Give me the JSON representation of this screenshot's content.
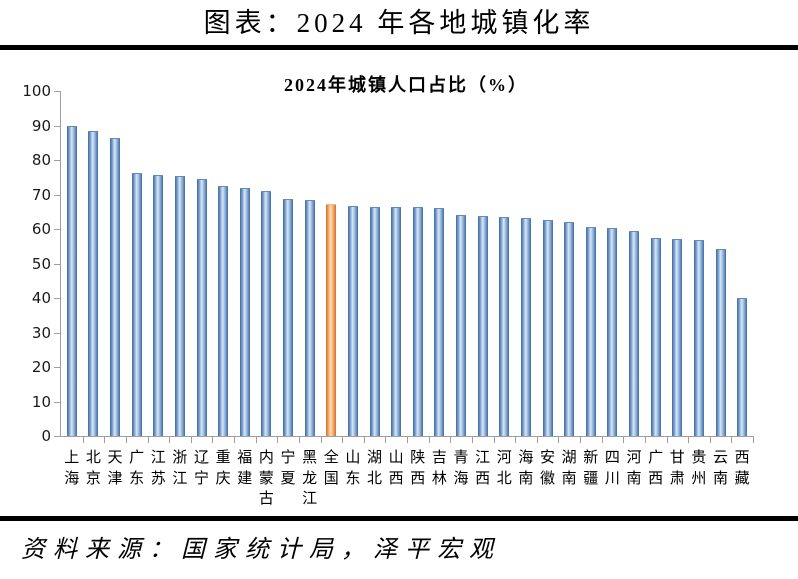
{
  "header": {
    "title": "图表：2024 年各地城镇化率"
  },
  "footer": {
    "source": "资料来源：国家统计局，泽平宏观"
  },
  "chart_data": {
    "type": "bar",
    "title": "2024年城镇人口占比（%）",
    "xlabel": "",
    "ylabel": "",
    "ylim": [
      0,
      100
    ],
    "ytick_step": 10,
    "yticks": [
      0,
      10,
      20,
      30,
      40,
      50,
      60,
      70,
      80,
      90,
      100
    ],
    "grid": false,
    "legend": "none",
    "bar_color": "#4f81bd",
    "highlight_color": "#f79646",
    "highlight_category": "全国",
    "categories": [
      "上海",
      "北京",
      "天津",
      "广东",
      "江苏",
      "浙江",
      "辽宁",
      "重庆",
      "福建",
      "内蒙古",
      "宁夏",
      "黑龙江",
      "全国",
      "山东",
      "湖北",
      "山西",
      "陕西",
      "吉林",
      "青海",
      "江西",
      "河北",
      "海南",
      "安徽",
      "湖南",
      "新疆",
      "四川",
      "河南",
      "广西",
      "甘肃",
      "贵州",
      "云南",
      "西藏"
    ],
    "values": [
      89.6,
      88.1,
      86.0,
      75.9,
      75.5,
      75.2,
      74.1,
      72.1,
      71.7,
      70.7,
      68.3,
      68.0,
      67.0,
      66.4,
      66.2,
      66.1,
      66.0,
      65.7,
      63.8,
      63.5,
      63.2,
      62.8,
      62.2,
      61.7,
      60.2,
      59.9,
      59.1,
      57.2,
      56.7,
      56.5,
      54.0,
      39.6
    ]
  }
}
